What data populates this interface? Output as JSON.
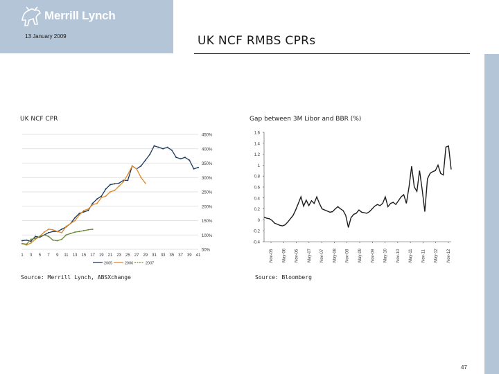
{
  "header": {
    "logo_text": "Merrill Lynch",
    "date": "13 January 2009",
    "title": "UK NCF RMBS CPRs",
    "page_number": "47"
  },
  "colors": {
    "brand_panel": "#b4c5d8",
    "series_2005": "#1f3a5f",
    "series_2006": "#e08a2c",
    "series_2007": "#6b8a3a",
    "libor_gap": "#1c1c1c"
  },
  "panels": [
    {
      "heading": "UK NCF CPR",
      "source": "Source: Merrill Lynch, ABSXchange"
    },
    {
      "heading": "Gap between 3M Libor and BBR (%)",
      "source": "Source: Bloomberg"
    }
  ],
  "chart_data": [
    {
      "type": "line",
      "title": "UK NCF CPR",
      "x_ticks": [
        "1",
        "3",
        "5",
        "7",
        "9",
        "11",
        "13",
        "15",
        "17",
        "19",
        "21",
        "23",
        "25",
        "27",
        "29",
        "31",
        "33",
        "35",
        "37",
        "39",
        "41"
      ],
      "y_ticks": [
        "450%",
        "400%",
        "350%",
        "300%",
        "250%",
        "200%",
        "150%",
        "100%",
        "50%"
      ],
      "ylim": [
        50,
        450
      ],
      "xlim": [
        1,
        41
      ],
      "grid": true,
      "legend": "bottom",
      "series": [
        {
          "name": "2005",
          "x": [
            1,
            2,
            3,
            4,
            5,
            6,
            7,
            8,
            9,
            10,
            11,
            12,
            13,
            14,
            15,
            16,
            17,
            18,
            19,
            20,
            21,
            22,
            23,
            24,
            25,
            26,
            27,
            28,
            29,
            30,
            31,
            32,
            33,
            34,
            35,
            36,
            37,
            38,
            39,
            40,
            41
          ],
          "values": [
            80,
            82,
            78,
            95,
            92,
            100,
            108,
            112,
            112,
            120,
            128,
            140,
            160,
            175,
            180,
            185,
            210,
            225,
            235,
            260,
            275,
            278,
            280,
            290,
            290,
            340,
            330,
            340,
            360,
            380,
            410,
            405,
            400,
            405,
            395,
            370,
            365,
            370,
            360,
            330,
            335
          ]
        },
        {
          "name": "2006",
          "x": [
            1,
            2,
            3,
            4,
            5,
            6,
            7,
            8,
            9,
            10,
            11,
            12,
            13,
            14,
            15,
            16,
            17,
            18,
            19,
            20,
            21,
            22,
            23,
            24,
            25,
            26,
            27,
            28,
            29
          ],
          "values": [
            70,
            65,
            72,
            85,
            95,
            110,
            120,
            118,
            112,
            108,
            130,
            140,
            150,
            170,
            185,
            190,
            205,
            210,
            230,
            235,
            250,
            255,
            270,
            285,
            310,
            340,
            330,
            300,
            280
          ]
        },
        {
          "name": "2007",
          "x": [
            1,
            2,
            3,
            4,
            5,
            6,
            7,
            8,
            9,
            10,
            11,
            12,
            13,
            14,
            15,
            16,
            17
          ],
          "values": [
            70,
            68,
            85,
            88,
            95,
            100,
            95,
            82,
            80,
            85,
            100,
            105,
            110,
            112,
            115,
            118,
            120
          ]
        }
      ]
    },
    {
      "type": "line",
      "title": "Gap between 3M Libor and BBR (%)",
      "x_ticks": [
        "Nov-05",
        "May-06",
        "Nov-06",
        "May-07",
        "Nov-07",
        "May-08",
        "Nov-08",
        "May-09",
        "Nov-09",
        "May-10",
        "Nov-10",
        "May-11",
        "Nov-11",
        "May-12",
        "Nov-12"
      ],
      "y_ticks": [
        "1.6",
        "1.4",
        "1.2",
        "1",
        "0.8",
        "0.6",
        "0.4",
        "0.2",
        "0",
        "-0.2",
        "-0.4"
      ],
      "ylim": [
        -0.4,
        1.6
      ],
      "grid": false,
      "series": [
        {
          "values": [
            0.05,
            0.03,
            0.02,
            -0.01,
            -0.06,
            -0.08,
            -0.1,
            -0.11,
            -0.09,
            -0.04,
            0.02,
            0.08,
            0.18,
            0.3,
            0.42,
            0.25,
            0.36,
            0.26,
            0.35,
            0.3,
            0.42,
            0.3,
            0.2,
            0.18,
            0.16,
            0.14,
            0.15,
            0.2,
            0.24,
            0.2,
            0.17,
            0.08,
            -0.14,
            0.04,
            0.1,
            0.12,
            0.18,
            0.14,
            0.13,
            0.12,
            0.15,
            0.2,
            0.25,
            0.28,
            0.26,
            0.3,
            0.42,
            0.24,
            0.3,
            0.32,
            0.28,
            0.35,
            0.42,
            0.46,
            0.3,
            0.6,
            0.98,
            0.6,
            0.52,
            0.9,
            0.55,
            0.15,
            0.75,
            0.85,
            0.88,
            0.9,
            1.0,
            0.85,
            0.82,
            1.33,
            1.35,
            0.92
          ]
        }
      ]
    }
  ]
}
